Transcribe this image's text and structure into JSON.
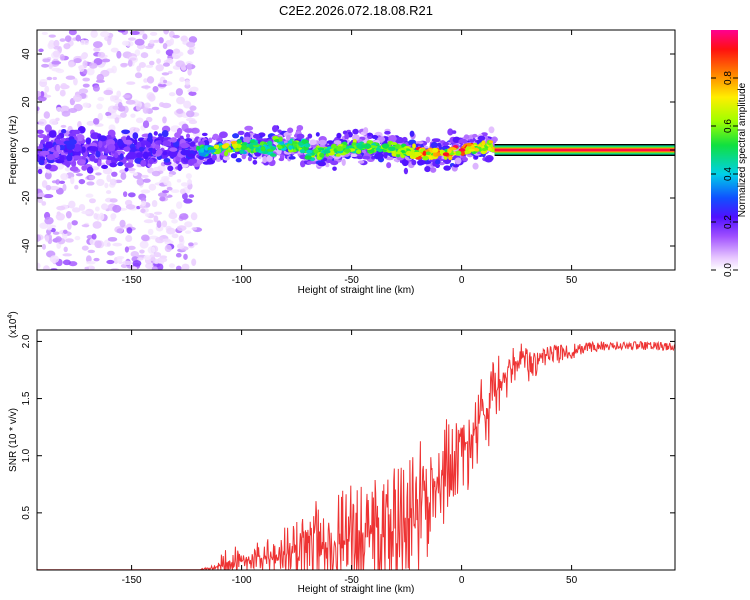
{
  "chart_data": [
    {
      "type": "heatmap",
      "title": "C2E2.2026.072.18.08.R21",
      "xlabel": "Height of straight line (km)",
      "ylabel": "Frequency (Hz)",
      "xlim": [
        -193,
        97
      ],
      "ylim": [
        -50,
        50
      ],
      "xticks": [
        "-150",
        "-100",
        "-50",
        "0",
        "50"
      ],
      "yticks": [
        "40",
        "20",
        "0",
        "-20",
        "-40"
      ],
      "colorbar": {
        "label": "Normalized spectral amplitude",
        "ticks": [
          "0.0",
          "0.2",
          "0.4",
          "0.6",
          "0.8"
        ],
        "range": [
          0,
          1
        ]
      },
      "description_of_field": {
        "scatter_region_km": [
          -193,
          -120
        ],
        "scatter_freq_range_hz": [
          -50,
          50
        ],
        "central_band_km": [
          -120,
          15
        ],
        "central_band_halfwidth_hz": 6,
        "flat_line_km": [
          15,
          97
        ],
        "flat_line_freq_hz": 0,
        "flat_line_amplitude": 1.0
      }
    },
    {
      "type": "line",
      "title": "",
      "xlabel": "Height of straight line (km)",
      "ylabel": "SNR (10 * v/v)",
      "multiplier": "(x10",
      "multiplier_exp": "4",
      "xlim": [
        -193,
        97
      ],
      "ylim": [
        0,
        2.1
      ],
      "xticks": [
        "-150",
        "-100",
        "-50",
        "0",
        "50"
      ],
      "yticks": [
        "2.0",
        "1.5",
        "1.0",
        "0.5"
      ],
      "series": [
        {
          "name": "SNR",
          "color": "#ee3333",
          "x": [
            -193,
            -150,
            -120,
            -112,
            -108,
            -100,
            -90,
            -80,
            -70,
            -60,
            -50,
            -40,
            -30,
            -20,
            -10,
            0,
            10,
            20,
            30,
            40,
            50,
            60,
            70,
            80,
            97
          ],
          "base": [
            0.0,
            0.0,
            0.0,
            0.02,
            0.06,
            0.08,
            0.1,
            0.14,
            0.18,
            0.22,
            0.27,
            0.3,
            0.35,
            0.5,
            0.8,
            1.05,
            1.35,
            1.7,
            1.9,
            1.97,
            1.98,
            2.0,
            2.0,
            2.0,
            1.99
          ],
          "spread": [
            0.0,
            0.0,
            0.0,
            0.04,
            0.2,
            0.15,
            0.2,
            0.3,
            0.45,
            0.55,
            0.65,
            0.7,
            0.65,
            0.7,
            0.65,
            0.55,
            0.45,
            0.3,
            0.15,
            0.1,
            0.08,
            0.05,
            0.04,
            0.04,
            0.04
          ]
        }
      ]
    }
  ]
}
